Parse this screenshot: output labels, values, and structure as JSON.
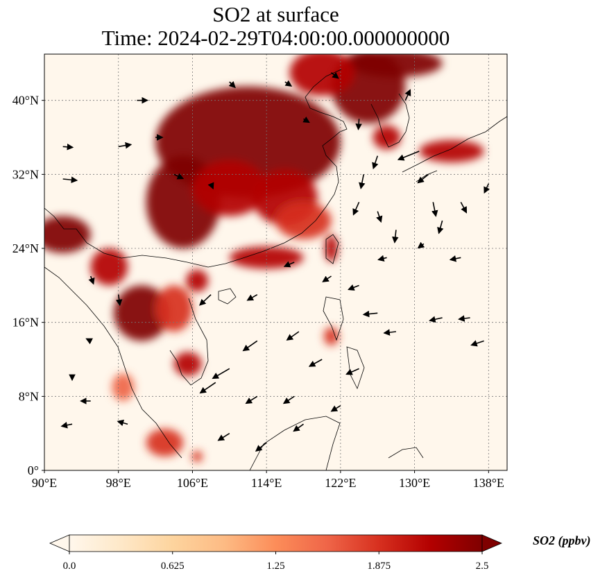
{
  "title": {
    "line1": "SO2 at surface",
    "line2": "Time: 2024-02-29T04:00:00.000000000"
  },
  "colorbar": {
    "label": "SO2 (ppbv)",
    "colormap": "OrRd",
    "min": 0.0,
    "max": 2.5,
    "ticks": [
      "0.0",
      "0.625",
      "1.25",
      "1.875",
      "2.5"
    ],
    "colors": [
      "#fff7ec",
      "#fee8c8",
      "#fdd49e",
      "#fdbb84",
      "#fc8d59",
      "#ef6548",
      "#d7301f",
      "#b30000",
      "#7f0000"
    ]
  },
  "map": {
    "extent": {
      "lon": [
        90,
        140
      ],
      "lat": [
        0,
        45
      ]
    },
    "x_ticks": [
      "90°E",
      "98°E",
      "106°E",
      "114°E",
      "122°E",
      "130°E",
      "138°E"
    ],
    "y_ticks": [
      "0°",
      "8°N",
      "16°N",
      "24°N",
      "32°N",
      "40°N"
    ],
    "gridlines": true
  },
  "chart_data": {
    "type": "heatmap",
    "title": "SO2 at surface\nTime: 2024-02-29T04:00:00.000000000",
    "xlabel": "",
    "ylabel": "",
    "xlim": [
      90,
      140
    ],
    "ylim": [
      0,
      45
    ],
    "x_ticks": [
      90,
      98,
      106,
      114,
      122,
      130,
      138
    ],
    "y_ticks": [
      0,
      8,
      16,
      24,
      32,
      40
    ],
    "units": "ppbv",
    "value_range": [
      0.0,
      2.5
    ],
    "high_regions": [
      {
        "lon": 112,
        "lat": 35.5,
        "dlon": 10,
        "dlat": 6,
        "value": 2.5
      },
      {
        "lon": 105,
        "lat": 29,
        "dlon": 4,
        "dlat": 5,
        "value": 2.5
      },
      {
        "lon": 110,
        "lat": 30.5,
        "dlon": 4,
        "dlat": 3,
        "value": 2.3
      },
      {
        "lon": 116,
        "lat": 29.5,
        "dlon": 3.5,
        "dlat": 3,
        "value": 2.2
      },
      {
        "lon": 118,
        "lat": 27,
        "dlon": 3,
        "dlat": 2,
        "value": 2.0
      },
      {
        "lon": 114,
        "lat": 23,
        "dlon": 4,
        "dlat": 1.2,
        "value": 2.3
      },
      {
        "lon": 121,
        "lat": 24,
        "dlon": 0.7,
        "dlat": 1.5,
        "value": 2.2
      },
      {
        "lon": 125,
        "lat": 41.5,
        "dlon": 4,
        "dlat": 4,
        "value": 2.4
      },
      {
        "lon": 128,
        "lat": 44,
        "dlon": 5,
        "dlat": 1.5,
        "value": 2.5
      },
      {
        "lon": 120,
        "lat": 43,
        "dlon": 3.5,
        "dlat": 2.5,
        "value": 2.2
      },
      {
        "lon": 127,
        "lat": 36,
        "dlon": 1.5,
        "dlat": 1.3,
        "value": 2.2
      },
      {
        "lon": 134,
        "lat": 34.5,
        "dlon": 3.5,
        "dlat": 1.2,
        "value": 2.2
      },
      {
        "lon": 92,
        "lat": 25.5,
        "dlon": 3,
        "dlat": 2,
        "value": 2.5
      },
      {
        "lon": 97,
        "lat": 22,
        "dlon": 2,
        "dlat": 2,
        "value": 2.2
      },
      {
        "lon": 100.5,
        "lat": 17,
        "dlon": 3,
        "dlat": 3,
        "value": 2.4
      },
      {
        "lon": 104,
        "lat": 17.5,
        "dlon": 2,
        "dlat": 2.5,
        "value": 2.0
      },
      {
        "lon": 105.5,
        "lat": 11.5,
        "dlon": 1.5,
        "dlat": 1.3,
        "value": 2.3
      },
      {
        "lon": 106.5,
        "lat": 20.5,
        "dlon": 1.2,
        "dlat": 1.2,
        "value": 2.2
      },
      {
        "lon": 103,
        "lat": 3,
        "dlon": 2,
        "dlat": 1.5,
        "value": 2.0
      },
      {
        "lon": 106.5,
        "lat": 1.5,
        "dlon": 0.6,
        "dlat": 0.6,
        "value": 2.0
      },
      {
        "lon": 121,
        "lat": 14.5,
        "dlon": 0.8,
        "dlat": 1.0,
        "value": 1.8
      },
      {
        "lon": 98.5,
        "lat": 9,
        "dlon": 1.2,
        "dlat": 1.5,
        "value": 1.5
      }
    ],
    "wind_vectors": [
      {
        "lon": 92,
        "lat": 35,
        "u": 1.4,
        "v": -0.1
      },
      {
        "lon": 98,
        "lat": 35,
        "u": 1.8,
        "v": 0.3
      },
      {
        "lon": 92,
        "lat": 31.5,
        "u": 2.0,
        "v": -0.2
      },
      {
        "lon": 95,
        "lat": 21,
        "u": 0.4,
        "v": -1.1
      },
      {
        "lon": 98,
        "lat": 19,
        "u": 0.2,
        "v": -1.5
      },
      {
        "lon": 95,
        "lat": 14,
        "u": -0.6,
        "v": 0.3
      },
      {
        "lon": 93,
        "lat": 10,
        "u": 0.0,
        "v": -0.3
      },
      {
        "lon": 95,
        "lat": 7.5,
        "u": -1.4,
        "v": 0.0
      },
      {
        "lon": 93,
        "lat": 5,
        "u": -1.5,
        "v": -0.3
      },
      {
        "lon": 99,
        "lat": 5,
        "u": -1.4,
        "v": 0.4
      },
      {
        "lon": 100,
        "lat": 40,
        "u": 1.5,
        "v": 0.0
      },
      {
        "lon": 108,
        "lat": 31,
        "u": 0.3,
        "v": -0.7
      },
      {
        "lon": 116,
        "lat": 42,
        "u": 0.9,
        "v": -0.6
      },
      {
        "lon": 118,
        "lat": 38,
        "u": 0.8,
        "v": -0.5
      },
      {
        "lon": 124,
        "lat": 38,
        "u": -0.1,
        "v": -1.5
      },
      {
        "lon": 126,
        "lat": 34,
        "u": -0.6,
        "v": -1.8
      },
      {
        "lon": 124.5,
        "lat": 32,
        "u": -0.4,
        "v": -2.0
      },
      {
        "lon": 124,
        "lat": 29,
        "u": -0.8,
        "v": -1.8
      },
      {
        "lon": 126,
        "lat": 28,
        "u": 0.5,
        "v": -1.5
      },
      {
        "lon": 128,
        "lat": 26,
        "u": -0.2,
        "v": -1.8
      },
      {
        "lon": 130.5,
        "lat": 34.5,
        "u": -3.0,
        "v": -1.2
      },
      {
        "lon": 131.5,
        "lat": 32,
        "u": -1.5,
        "v": -1.2
      },
      {
        "lon": 132,
        "lat": 29,
        "u": 0.4,
        "v": -2.0
      },
      {
        "lon": 133,
        "lat": 27,
        "u": -0.5,
        "v": -1.8
      },
      {
        "lon": 135,
        "lat": 29,
        "u": 0.8,
        "v": -1.5
      },
      {
        "lon": 138,
        "lat": 31,
        "u": -0.6,
        "v": -1.3
      },
      {
        "lon": 131,
        "lat": 24.5,
        "u": -0.8,
        "v": -0.6
      },
      {
        "lon": 135,
        "lat": 23,
        "u": -1.5,
        "v": -0.3
      },
      {
        "lon": 127,
        "lat": 23,
        "u": -1.2,
        "v": -0.3
      },
      {
        "lon": 126,
        "lat": 17,
        "u": -2.0,
        "v": -0.2
      },
      {
        "lon": 128,
        "lat": 15,
        "u": -1.7,
        "v": -0.2
      },
      {
        "lon": 133,
        "lat": 16.5,
        "u": -1.8,
        "v": -0.4
      },
      {
        "lon": 136,
        "lat": 16.5,
        "u": -1.6,
        "v": -0.2
      },
      {
        "lon": 137.5,
        "lat": 14,
        "u": -1.8,
        "v": -0.6
      },
      {
        "lon": 124,
        "lat": 11,
        "u": -1.8,
        "v": -0.8
      },
      {
        "lon": 120,
        "lat": 12,
        "u": -1.8,
        "v": -1.0
      },
      {
        "lon": 117.5,
        "lat": 15,
        "u": -1.7,
        "v": -1.2
      },
      {
        "lon": 113,
        "lat": 14,
        "u": -2.0,
        "v": -1.4
      },
      {
        "lon": 110,
        "lat": 11,
        "u": -2.4,
        "v": -1.4
      },
      {
        "lon": 108.5,
        "lat": 9.5,
        "u": -2.2,
        "v": -1.5
      },
      {
        "lon": 113,
        "lat": 8,
        "u": -1.6,
        "v": -1.0
      },
      {
        "lon": 117,
        "lat": 8,
        "u": -1.5,
        "v": -1.0
      },
      {
        "lon": 110,
        "lat": 4,
        "u": -1.6,
        "v": -1.0
      },
      {
        "lon": 114,
        "lat": 3,
        "u": -1.5,
        "v": -1.2
      },
      {
        "lon": 118,
        "lat": 5,
        "u": -1.4,
        "v": -1.0
      },
      {
        "lon": 122,
        "lat": 7,
        "u": -1.3,
        "v": -0.8
      },
      {
        "lon": 121,
        "lat": 21,
        "u": -1.2,
        "v": -0.8
      },
      {
        "lon": 117,
        "lat": 22.5,
        "u": -1.4,
        "v": -0.6
      },
      {
        "lon": 124,
        "lat": 20,
        "u": -1.5,
        "v": -0.6
      },
      {
        "lon": 113,
        "lat": 19,
        "u": -1.4,
        "v": -0.8
      },
      {
        "lon": 108,
        "lat": 19,
        "u": -1.6,
        "v": -1.5
      },
      {
        "lon": 104,
        "lat": 32,
        "u": 1.3,
        "v": -0.6
      },
      {
        "lon": 102,
        "lat": 36,
        "u": 1.0,
        "v": 0.0
      },
      {
        "lon": 110,
        "lat": 42,
        "u": 0.8,
        "v": -0.8
      },
      {
        "lon": 121,
        "lat": 43,
        "u": 1.0,
        "v": -0.8
      },
      {
        "lon": 129,
        "lat": 40,
        "u": 0.7,
        "v": 1.5
      }
    ]
  }
}
